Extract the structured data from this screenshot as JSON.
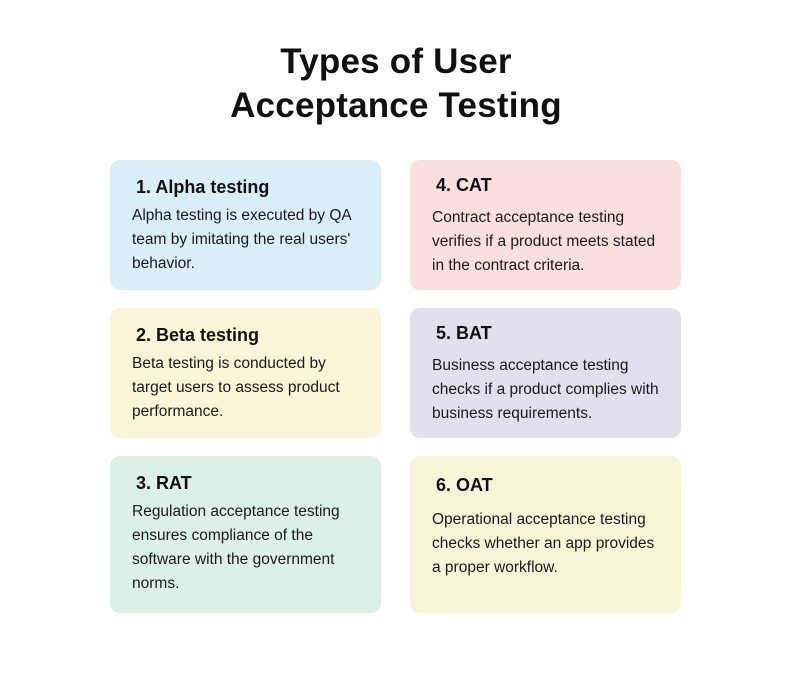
{
  "title": {
    "line1": "Types of User",
    "line2": "Acceptance Testing"
  },
  "cards": [
    {
      "heading": "1. Alpha testing",
      "text": "Alpha testing is executed by QA team by imitating the real users' behavior.",
      "color": "#d9eef7"
    },
    {
      "heading": "2. Beta testing",
      "text": "Beta testing is conducted by target users to assess product performance.",
      "color": "#faf4d8"
    },
    {
      "heading": "3. RAT",
      "text": "Regulation acceptance testing ensures compliance of the software with the government norms.",
      "color": "#dcf0e7"
    },
    {
      "heading": "4. CAT",
      "text": "Contract acceptance testing verifies if a product meets stated in the contract criteria.",
      "color": "#f9e0de"
    },
    {
      "heading": "5. BAT",
      "text": "Business acceptance testing checks if a product complies with business requirements.",
      "color": "#e2e0ec"
    },
    {
      "heading": "6. OAT",
      "text": "Operational acceptance testing checks whether an app provides a proper workflow.",
      "color": "#f7f5d8"
    }
  ]
}
